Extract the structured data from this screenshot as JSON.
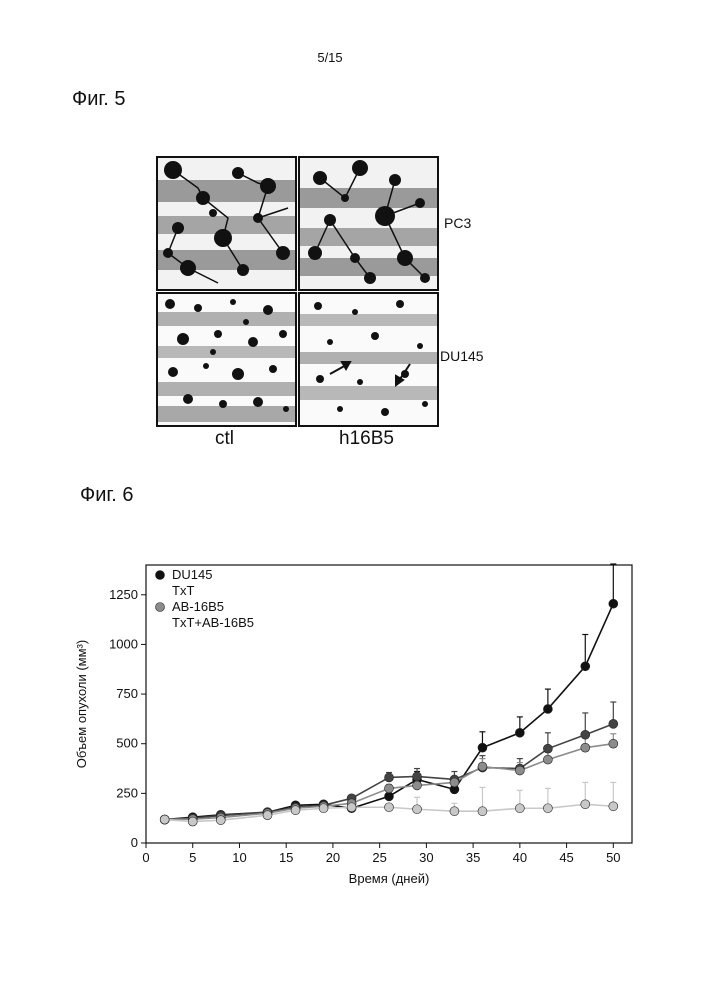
{
  "page_number": "5/15",
  "figure5": {
    "label": "Фиг. 5",
    "row_labels": [
      "PC3",
      "DU145"
    ],
    "col_labels": [
      "ctl",
      "h16B5"
    ]
  },
  "figure6": {
    "label": "Фиг. 6"
  },
  "chart_data": {
    "type": "line",
    "title": "",
    "xlabel": "Время (дней)",
    "ylabel": "Объем опухоли (мм³)",
    "xlim": [
      0,
      52
    ],
    "ylim": [
      0,
      1400
    ],
    "xticks": [
      0,
      5,
      10,
      15,
      20,
      25,
      30,
      35,
      40,
      45,
      50
    ],
    "yticks": [
      0,
      250,
      500,
      750,
      1000,
      1250
    ],
    "legend_position": "top-left",
    "series": [
      {
        "name": "DU145",
        "color": "#111111",
        "marker": "filled-circle",
        "points": [
          [
            2,
            118
          ],
          [
            5,
            130
          ],
          [
            8,
            142
          ],
          [
            13,
            155
          ],
          [
            16,
            190
          ],
          [
            19,
            195
          ],
          [
            22,
            175
          ],
          [
            26,
            235
          ],
          [
            29,
            320
          ],
          [
            33,
            270
          ],
          [
            36,
            480
          ],
          [
            40,
            555
          ],
          [
            43,
            675
          ],
          [
            47,
            890
          ],
          [
            50,
            1205
          ]
        ],
        "error": [
          0,
          10,
          10,
          0,
          12,
          12,
          12,
          25,
          40,
          35,
          80,
          80,
          100,
          160,
          200
        ]
      },
      {
        "name": "TxT",
        "color": "#444444",
        "marker": "filled-circle",
        "points": [
          [
            2,
            118
          ],
          [
            5,
            125
          ],
          [
            8,
            138
          ],
          [
            13,
            155
          ],
          [
            16,
            180
          ],
          [
            19,
            190
          ],
          [
            22,
            225
          ],
          [
            26,
            330
          ],
          [
            29,
            335
          ],
          [
            33,
            320
          ],
          [
            36,
            380
          ],
          [
            40,
            375
          ],
          [
            43,
            475
          ],
          [
            47,
            545
          ],
          [
            50,
            600
          ]
        ],
        "error": [
          0,
          10,
          10,
          0,
          12,
          12,
          15,
          25,
          40,
          40,
          60,
          50,
          80,
          110,
          110
        ]
      },
      {
        "name": "AB-16B5",
        "color": "#8c8c8c",
        "marker": "filled-circle",
        "points": [
          [
            2,
            118
          ],
          [
            5,
            120
          ],
          [
            8,
            128
          ],
          [
            13,
            150
          ],
          [
            16,
            175
          ],
          [
            19,
            185
          ],
          [
            22,
            200
          ],
          [
            26,
            275
          ],
          [
            29,
            290
          ],
          [
            33,
            305
          ],
          [
            36,
            385
          ],
          [
            40,
            365
          ],
          [
            43,
            420
          ],
          [
            47,
            480
          ],
          [
            50,
            500
          ]
        ],
        "error": [
          0,
          8,
          8,
          0,
          10,
          10,
          12,
          20,
          35,
          30,
          40,
          40,
          40,
          50,
          50
        ]
      },
      {
        "name": "TxT+AB-16B5",
        "color": "#c8c8c8",
        "marker": "filled-circle",
        "points": [
          [
            2,
            118
          ],
          [
            5,
            108
          ],
          [
            8,
            115
          ],
          [
            13,
            140
          ],
          [
            16,
            165
          ],
          [
            19,
            175
          ],
          [
            22,
            180
          ],
          [
            26,
            180
          ],
          [
            29,
            170
          ],
          [
            33,
            160
          ],
          [
            36,
            160
          ],
          [
            40,
            175
          ],
          [
            43,
            175
          ],
          [
            47,
            195
          ],
          [
            50,
            185
          ]
        ],
        "error": [
          0,
          6,
          6,
          0,
          8,
          8,
          10,
          15,
          60,
          40,
          120,
          90,
          100,
          110,
          120
        ]
      }
    ]
  }
}
